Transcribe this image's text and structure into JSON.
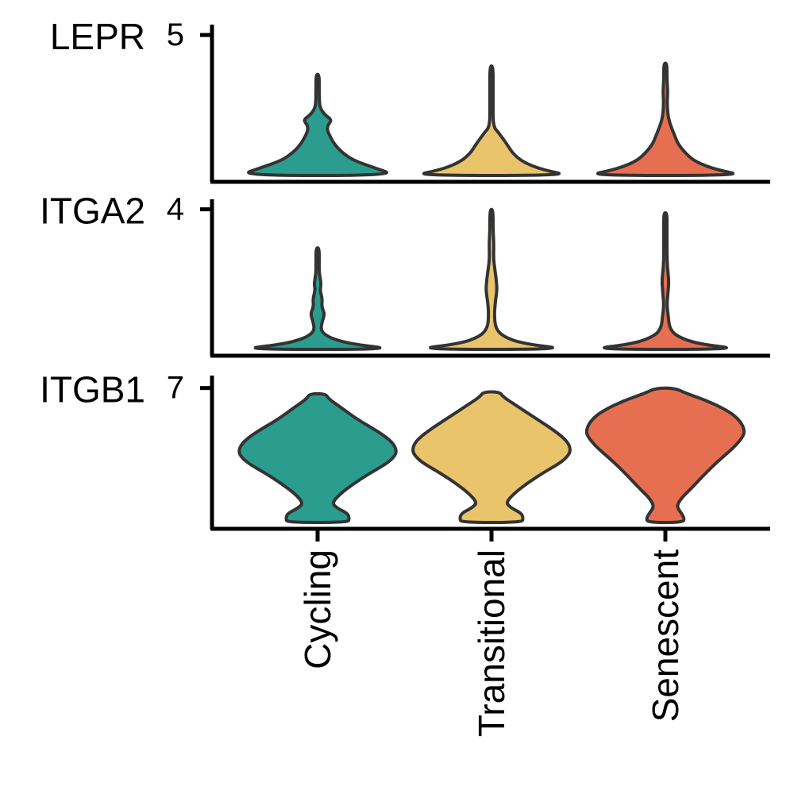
{
  "chart_data": {
    "type": "violin",
    "categories": [
      "Cycling",
      "Transitional",
      "Senescent"
    ],
    "colors": {
      "Cycling": "#2a9d8f",
      "Transitional": "#e9c46a",
      "Senescent": "#e76f51",
      "outline": "#333333",
      "axis": "#000000"
    },
    "grid": false,
    "legend": "none",
    "panels": [
      {
        "gene": "LEPR",
        "ymax_tick": 5,
        "ylim": [
          0,
          5.2
        ],
        "violins": [
          {
            "category": "Cycling",
            "max": 3.6,
            "profile": [
              [
                0,
                1.0
              ],
              [
                0.08,
                0.7
              ],
              [
                0.15,
                0.45
              ],
              [
                0.22,
                0.32
              ],
              [
                0.3,
                0.22
              ],
              [
                0.38,
                0.16
              ],
              [
                0.45,
                0.12
              ],
              [
                0.5,
                0.13
              ],
              [
                0.55,
                0.18
              ],
              [
                0.6,
                0.09
              ],
              [
                0.67,
                0.03
              ],
              [
                0.75,
                0.022
              ],
              [
                0.85,
                0.016
              ],
              [
                1.0,
                0.012
              ]
            ]
          },
          {
            "category": "Transitional",
            "max": 3.9,
            "profile": [
              [
                0,
                1.0
              ],
              [
                0.05,
                0.65
              ],
              [
                0.12,
                0.4
              ],
              [
                0.2,
                0.27
              ],
              [
                0.28,
                0.2
              ],
              [
                0.35,
                0.13
              ],
              [
                0.4,
                0.08
              ],
              [
                0.43,
                0.04
              ],
              [
                0.5,
                0.02
              ],
              [
                0.65,
                0.015
              ],
              [
                0.8,
                0.013
              ],
              [
                1.0,
                0.01
              ]
            ]
          },
          {
            "category": "Senescent",
            "max": 4.0,
            "profile": [
              [
                0,
                1.0
              ],
              [
                0.05,
                0.65
              ],
              [
                0.12,
                0.38
              ],
              [
                0.2,
                0.25
              ],
              [
                0.28,
                0.16
              ],
              [
                0.35,
                0.12
              ],
              [
                0.42,
                0.08
              ],
              [
                0.48,
                0.05
              ],
              [
                0.55,
                0.03
              ],
              [
                0.65,
                0.022
              ],
              [
                0.75,
                0.03
              ],
              [
                0.85,
                0.015
              ],
              [
                1.0,
                0.01
              ]
            ]
          }
        ]
      },
      {
        "gene": "ITGA2",
        "ymax_tick": 4,
        "ylim": [
          0,
          4.15
        ],
        "violins": [
          {
            "category": "Cycling",
            "max": 2.9,
            "profile": [
              [
                0,
                1.0
              ],
              [
                0.05,
                0.45
              ],
              [
                0.1,
                0.2
              ],
              [
                0.15,
                0.08
              ],
              [
                0.2,
                0.04
              ],
              [
                0.28,
                0.06
              ],
              [
                0.35,
                0.09
              ],
              [
                0.42,
                0.05
              ],
              [
                0.5,
                0.06
              ],
              [
                0.58,
                0.03
              ],
              [
                0.65,
                0.045
              ],
              [
                0.75,
                0.02
              ],
              [
                0.85,
                0.018
              ],
              [
                1.0,
                0.012
              ]
            ]
          },
          {
            "category": "Transitional",
            "max": 4.0,
            "profile": [
              [
                0,
                1.0
              ],
              [
                0.04,
                0.4
              ],
              [
                0.09,
                0.15
              ],
              [
                0.15,
                0.05
              ],
              [
                0.25,
                0.035
              ],
              [
                0.35,
                0.05
              ],
              [
                0.42,
                0.07
              ],
              [
                0.5,
                0.06
              ],
              [
                0.58,
                0.04
              ],
              [
                0.65,
                0.025
              ],
              [
                0.75,
                0.03
              ],
              [
                0.85,
                0.015
              ],
              [
                1.0,
                0.01
              ]
            ]
          },
          {
            "category": "Senescent",
            "max": 3.9,
            "profile": [
              [
                0,
                1.0
              ],
              [
                0.04,
                0.4
              ],
              [
                0.1,
                0.13
              ],
              [
                0.16,
                0.05
              ],
              [
                0.25,
                0.035
              ],
              [
                0.32,
                0.02
              ],
              [
                0.4,
                0.03
              ],
              [
                0.5,
                0.045
              ],
              [
                0.6,
                0.025
              ],
              [
                0.7,
                0.02
              ],
              [
                0.8,
                0.018
              ],
              [
                0.9,
                0.012
              ],
              [
                1.0,
                0.01
              ]
            ]
          }
        ]
      },
      {
        "gene": "ITGB1",
        "ymax_tick": 7,
        "ylim": [
          0,
          7.4
        ],
        "violins": [
          {
            "category": "Cycling",
            "max": 6.7,
            "profile": [
              [
                0,
                0.38
              ],
              [
                0.03,
                0.4
              ],
              [
                0.07,
                0.38
              ],
              [
                0.11,
                0.25
              ],
              [
                0.15,
                0.18
              ],
              [
                0.22,
                0.28
              ],
              [
                0.3,
                0.45
              ],
              [
                0.38,
                0.65
              ],
              [
                0.45,
                0.85
              ],
              [
                0.5,
                0.95
              ],
              [
                0.55,
                1.0
              ],
              [
                0.62,
                0.95
              ],
              [
                0.7,
                0.78
              ],
              [
                0.8,
                0.5
              ],
              [
                0.9,
                0.28
              ],
              [
                0.96,
                0.14
              ],
              [
                1.0,
                0.1
              ]
            ]
          },
          {
            "category": "Transitional",
            "max": 6.8,
            "profile": [
              [
                0,
                0.38
              ],
              [
                0.03,
                0.4
              ],
              [
                0.07,
                0.38
              ],
              [
                0.11,
                0.25
              ],
              [
                0.15,
                0.18
              ],
              [
                0.22,
                0.28
              ],
              [
                0.3,
                0.45
              ],
              [
                0.38,
                0.65
              ],
              [
                0.45,
                0.85
              ],
              [
                0.5,
                0.95
              ],
              [
                0.55,
                1.0
              ],
              [
                0.62,
                0.96
              ],
              [
                0.7,
                0.8
              ],
              [
                0.8,
                0.55
              ],
              [
                0.9,
                0.3
              ],
              [
                0.96,
                0.15
              ],
              [
                1.0,
                0.1
              ]
            ]
          },
          {
            "category": "Senescent",
            "max": 7.0,
            "profile": [
              [
                0,
                0.22
              ],
              [
                0.03,
                0.24
              ],
              [
                0.07,
                0.2
              ],
              [
                0.12,
                0.14
              ],
              [
                0.18,
                0.2
              ],
              [
                0.25,
                0.32
              ],
              [
                0.35,
                0.48
              ],
              [
                0.45,
                0.65
              ],
              [
                0.55,
                0.85
              ],
              [
                0.63,
                0.97
              ],
              [
                0.68,
                1.0
              ],
              [
                0.75,
                0.95
              ],
              [
                0.82,
                0.82
              ],
              [
                0.9,
                0.55
              ],
              [
                0.96,
                0.26
              ],
              [
                1.0,
                0.12
              ]
            ]
          }
        ]
      }
    ]
  }
}
